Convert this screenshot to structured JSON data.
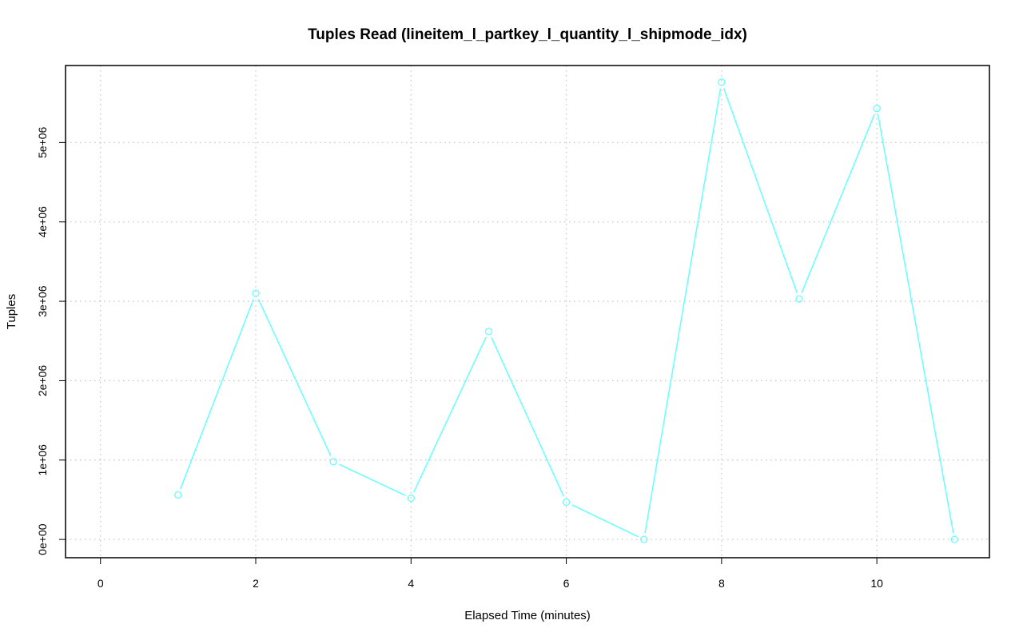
{
  "chart_data": {
    "type": "line",
    "title": "Tuples Read (lineitem_l_partkey_l_quantity_l_shipmode_idx)",
    "xlabel": "Elapsed Time (minutes)",
    "ylabel": "Tuples",
    "xlim": [
      -0.45,
      11.45
    ],
    "ylim": [
      -230000,
      5970000
    ],
    "x_ticks": [
      0,
      2,
      4,
      6,
      8,
      10
    ],
    "x_tick_labels": [
      "0",
      "2",
      "4",
      "6",
      "8",
      "10"
    ],
    "y_ticks": [
      0,
      1000000,
      2000000,
      3000000,
      4000000,
      5000000
    ],
    "y_tick_labels": [
      "0e+00",
      "1e+06",
      "2e+06",
      "3e+06",
      "4e+06",
      "5e+06"
    ],
    "x_grid": [
      0,
      2,
      4,
      6,
      8,
      10
    ],
    "y_grid": [
      0,
      1000000,
      2000000,
      3000000,
      4000000,
      5000000
    ],
    "grid": true,
    "legend": "none",
    "series": [
      {
        "color": "#66ffff",
        "marker": "circle",
        "x": [
          1,
          2,
          3,
          4,
          5,
          6,
          7,
          8,
          9,
          10,
          11
        ],
        "y": [
          560000,
          3100000,
          980000,
          520000,
          2620000,
          470000,
          0,
          5760000,
          3030000,
          5430000,
          0
        ]
      }
    ]
  }
}
